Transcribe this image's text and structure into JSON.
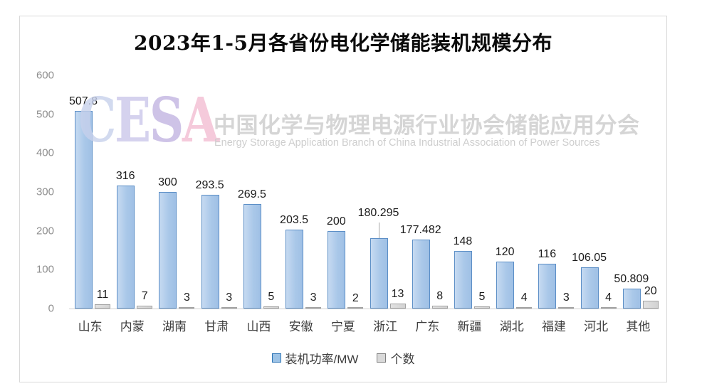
{
  "frame": {
    "background": "#ffffff",
    "border_color": "#d9d9d9"
  },
  "chart_data": {
    "type": "bar",
    "title": "2023年1-5月各省份电化学储能装机规模分布",
    "categories": [
      "山东",
      "内蒙",
      "湖南",
      "甘肃",
      "山西",
      "安徽",
      "宁夏",
      "浙江",
      "广东",
      "新疆",
      "湖北",
      "福建",
      "河北",
      "其他"
    ],
    "series": [
      {
        "name": "装机功率/MW",
        "values": [
          507.8,
          316,
          300,
          293.5,
          269.5,
          203.5,
          200,
          180.295,
          177.482,
          148,
          120,
          116,
          106.05,
          50.809
        ],
        "fill": "#aac8e9",
        "border": "#5b8ec6",
        "swatch_fill": "#9dc3e6",
        "swatch_border": "#2e75b6"
      },
      {
        "name": "个数",
        "values": [
          11,
          7,
          3,
          3,
          5,
          3,
          2,
          13,
          8,
          5,
          4,
          3,
          4,
          20
        ],
        "fill": "#d2d2d2",
        "border": "#a3a3a3",
        "swatch_fill": "#d9d9d9",
        "swatch_border": "#7f7f7f"
      }
    ],
    "xlabel": "",
    "ylabel": "",
    "ylim": [
      0,
      600
    ],
    "yticks": [
      0,
      100,
      200,
      300,
      400,
      500,
      600
    ],
    "grid": false,
    "legend_position": "bottom",
    "callout_index": 7
  },
  "watermark": {
    "cesa_letters": [
      {
        "char": "C",
        "color": "#c7d1ec"
      },
      {
        "char": "E",
        "color": "#cbc7ea"
      },
      {
        "char": "S",
        "color": "#c2b5e2"
      },
      {
        "char": "A",
        "color": "#f3bed3"
      }
    ],
    "cn": "中国化学与物理电源行业协会储能应用分会",
    "en": "Energy Storage Application Branch of China Industrial Association of Power Sources"
  }
}
